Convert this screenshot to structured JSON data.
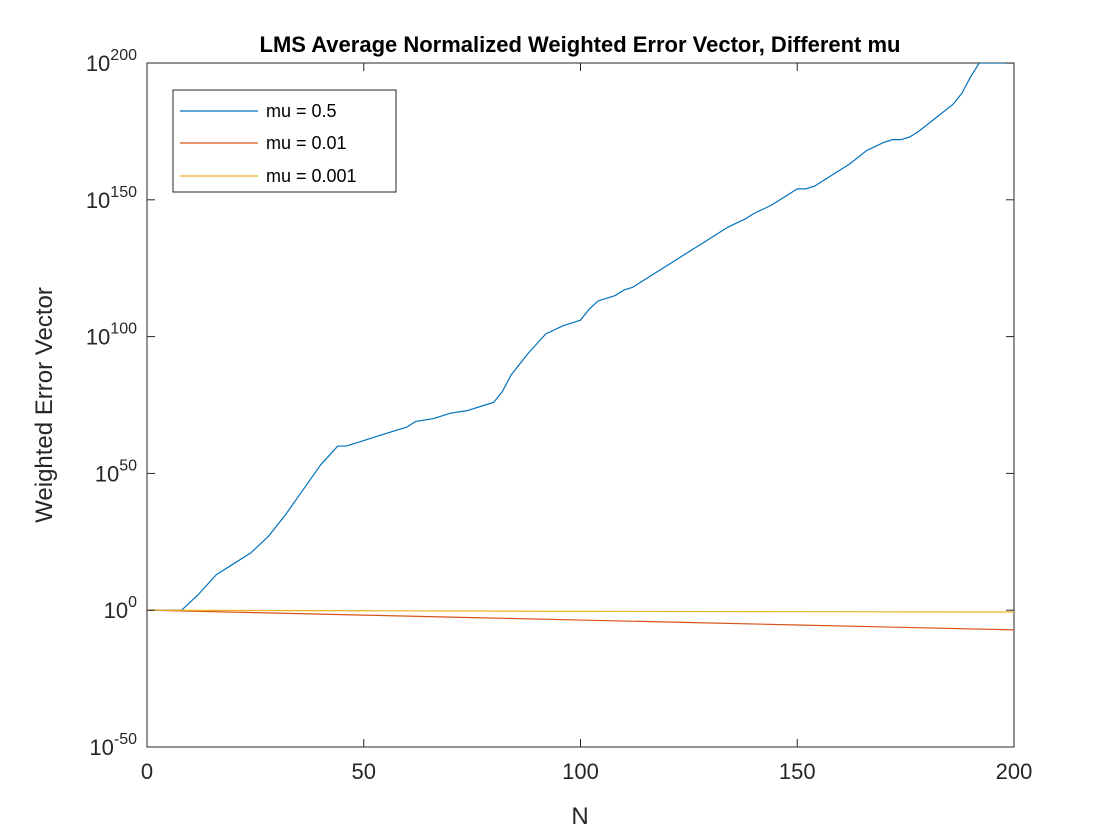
{
  "chart_data": {
    "type": "line",
    "title": "LMS Average Normalized Weighted Error Vector, Different mu",
    "xlabel": "N",
    "ylabel": "Weighted Error Vector",
    "xlim": [
      0,
      200
    ],
    "ylim_log10": [
      -50,
      200
    ],
    "yscale": "log",
    "x_ticks": [
      "0",
      "50",
      "100",
      "150",
      "200"
    ],
    "y_ticks": [
      {
        "base": "10",
        "exp": "-50"
      },
      {
        "base": "10",
        "exp": "0"
      },
      {
        "base": "10",
        "exp": "50"
      },
      {
        "base": "10",
        "exp": "100"
      },
      {
        "base": "10",
        "exp": "150"
      },
      {
        "base": "10",
        "exp": "200"
      }
    ],
    "grid": false,
    "legend_position": "top-left",
    "series": [
      {
        "name": "mu = 0.5",
        "color": "#0072BD",
        "x": [
          0,
          8,
          12,
          16,
          20,
          24,
          28,
          32,
          36,
          40,
          44,
          46,
          48,
          50,
          52,
          56,
          60,
          62,
          66,
          70,
          74,
          78,
          80,
          82,
          84,
          88,
          92,
          96,
          100,
          102,
          104,
          108,
          110,
          112,
          114,
          116,
          120,
          124,
          126,
          128,
          130,
          134,
          138,
          140,
          144,
          148,
          150,
          152,
          154,
          156,
          158,
          162,
          166,
          170,
          172,
          174,
          176,
          178,
          182,
          186,
          188,
          190,
          192,
          194,
          196,
          198,
          200
        ],
        "log10_y": [
          0,
          0,
          6,
          13,
          17,
          21,
          27,
          35,
          44,
          53,
          60,
          60,
          61,
          62,
          63,
          65,
          67,
          69,
          70,
          72,
          73,
          75,
          76,
          80,
          86,
          94,
          101,
          104,
          106,
          110,
          113,
          115,
          117,
          118,
          120,
          122,
          126,
          130,
          132,
          134,
          136,
          140,
          143,
          145,
          148,
          152,
          154,
          154,
          155,
          157,
          159,
          163,
          168,
          171,
          172,
          172,
          173,
          175,
          180,
          185,
          189,
          195,
          200,
          205,
          208,
          212,
          219
        ]
      },
      {
        "name": "mu = 0.01",
        "color": "#D95319",
        "x": [
          0,
          25,
          50,
          75,
          100,
          125,
          150,
          175,
          200
        ],
        "log10_y": [
          0,
          -0.9,
          -1.8,
          -2.7,
          -3.6,
          -4.5,
          -5.4,
          -6.3,
          -7.2
        ]
      },
      {
        "name": "mu = 0.001",
        "color": "#EDB120",
        "x": [
          0,
          25,
          50,
          75,
          100,
          125,
          150,
          175,
          200
        ],
        "log10_y": [
          0,
          -0.1,
          -0.2,
          -0.3,
          -0.4,
          -0.5,
          -0.55,
          -0.6,
          -0.65
        ]
      }
    ]
  }
}
